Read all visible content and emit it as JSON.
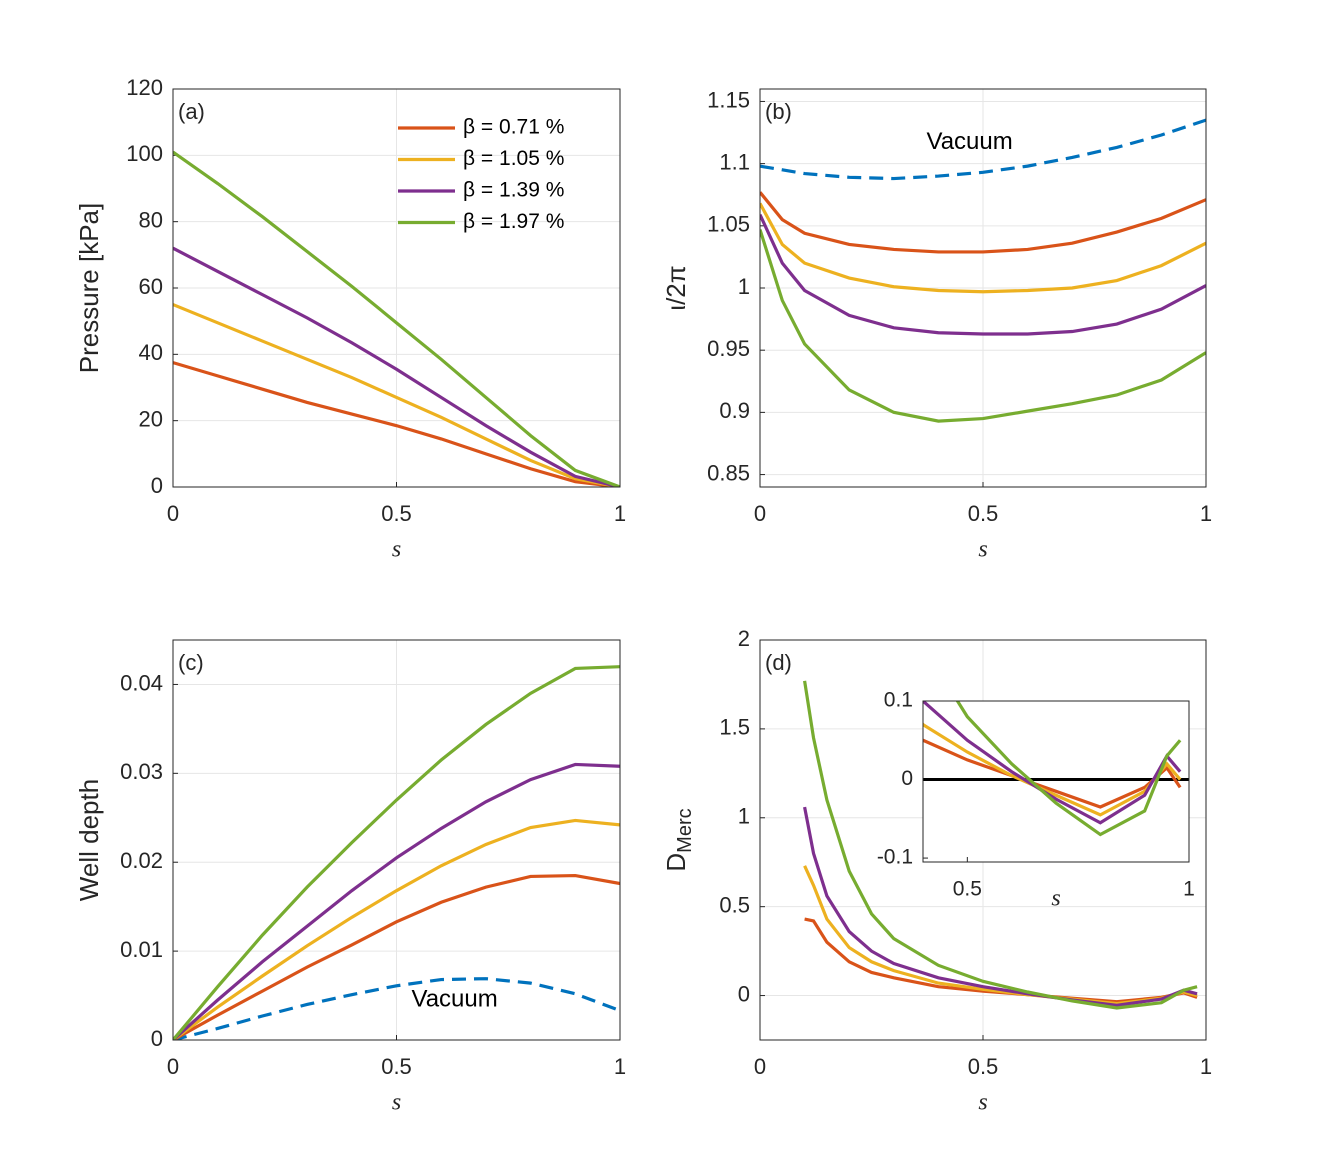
{
  "chart_data": [
    {
      "type": "line",
      "panel_label": "(a)",
      "xlabel": "s",
      "ylabel": "Pressure [kPa]",
      "xlim": [
        0,
        1
      ],
      "xticks": [
        0,
        0.5,
        1
      ],
      "ylim": [
        0,
        120
      ],
      "yticks": [
        0,
        20,
        40,
        60,
        80,
        100,
        120
      ],
      "grid": true,
      "legend": "top-right",
      "x": [
        0,
        0.1,
        0.2,
        0.3,
        0.4,
        0.5,
        0.6,
        0.7,
        0.8,
        0.9,
        1
      ],
      "series": [
        {
          "name": "β = 0.71 %",
          "color": "#d95319",
          "values": [
            37.5,
            33.5,
            29.5,
            25.5,
            22,
            18.5,
            14.5,
            10,
            5.5,
            1.6,
            0
          ]
        },
        {
          "name": "β = 1.05 %",
          "color": "#edb120",
          "values": [
            55,
            49.5,
            44,
            38.5,
            33,
            27,
            21,
            14.5,
            8,
            2.5,
            0
          ]
        },
        {
          "name": "β = 1.39 %",
          "color": "#7e2f8e",
          "values": [
            72,
            65,
            58,
            51,
            43.5,
            35.5,
            27,
            18.5,
            10.5,
            3.2,
            0
          ]
        },
        {
          "name": "β = 1.97 %",
          "color": "#77ac30",
          "values": [
            101,
            91.5,
            81.5,
            71,
            60.5,
            49.5,
            38.5,
            27,
            15.5,
            5,
            0
          ]
        }
      ]
    },
    {
      "type": "line",
      "panel_label": "(b)",
      "xlabel": "s",
      "ylabel": "ι/2π",
      "xlim": [
        0,
        1
      ],
      "xticks": [
        0,
        0.5,
        1
      ],
      "ylim": [
        0.84,
        1.16
      ],
      "yticks": [
        0.85,
        0.9,
        0.95,
        1,
        1.05,
        1.1,
        1.15
      ],
      "grid": true,
      "annotation": {
        "text": "Vacuum",
        "x": 0.47,
        "y": 1.117
      },
      "x": [
        0,
        0.05,
        0.1,
        0.2,
        0.3,
        0.4,
        0.5,
        0.6,
        0.7,
        0.8,
        0.9,
        1
      ],
      "series": [
        {
          "name": "Vacuum",
          "color": "#0072bd",
          "style": "dashed",
          "values": [
            1.098,
            1.095,
            1.092,
            1.089,
            1.088,
            1.09,
            1.093,
            1.098,
            1.105,
            1.113,
            1.123,
            1.135
          ]
        },
        {
          "color": "#d95319",
          "values": [
            1.077,
            1.055,
            1.044,
            1.035,
            1.031,
            1.029,
            1.029,
            1.031,
            1.036,
            1.045,
            1.056,
            1.071
          ]
        },
        {
          "color": "#edb120",
          "values": [
            1.068,
            1.035,
            1.02,
            1.008,
            1.001,
            0.998,
            0.997,
            0.998,
            1.0,
            1.006,
            1.018,
            1.036
          ]
        },
        {
          "color": "#7e2f8e",
          "values": [
            1.059,
            1.02,
            0.998,
            0.978,
            0.968,
            0.964,
            0.963,
            0.963,
            0.965,
            0.971,
            0.983,
            1.002
          ]
        },
        {
          "color": "#77ac30",
          "values": [
            1.047,
            0.99,
            0.955,
            0.918,
            0.9,
            0.893,
            0.895,
            0.901,
            0.907,
            0.914,
            0.926,
            0.948
          ]
        }
      ]
    },
    {
      "type": "line",
      "panel_label": "(c)",
      "xlabel": "s",
      "ylabel": "Well depth",
      "xlim": [
        0,
        1
      ],
      "xticks": [
        0,
        0.5,
        1
      ],
      "ylim": [
        0,
        0.045
      ],
      "yticks": [
        0,
        0.01,
        0.02,
        0.03,
        0.04
      ],
      "grid": true,
      "annotation": {
        "text": "Vacuum",
        "x": 0.63,
        "y": 0.0045
      },
      "x": [
        0,
        0.1,
        0.2,
        0.3,
        0.4,
        0.5,
        0.6,
        0.7,
        0.8,
        0.9,
        1
      ],
      "series": [
        {
          "name": "Vacuum",
          "color": "#0072bd",
          "style": "dashed",
          "values": [
            0,
            0.0013,
            0.0027,
            0.004,
            0.0051,
            0.0061,
            0.0068,
            0.0069,
            0.0064,
            0.0052,
            0.0033
          ]
        },
        {
          "color": "#d95319",
          "values": [
            0,
            0.0028,
            0.0055,
            0.0082,
            0.0107,
            0.0133,
            0.0155,
            0.0172,
            0.0184,
            0.0185,
            0.0176
          ]
        },
        {
          "color": "#edb120",
          "values": [
            0,
            0.0037,
            0.0072,
            0.0106,
            0.0138,
            0.0168,
            0.0196,
            0.022,
            0.0239,
            0.0247,
            0.0242
          ]
        },
        {
          "color": "#7e2f8e",
          "values": [
            0,
            0.0045,
            0.0088,
            0.0128,
            0.0168,
            0.0205,
            0.0238,
            0.0268,
            0.0293,
            0.031,
            0.0308
          ]
        },
        {
          "color": "#77ac30",
          "values": [
            0,
            0.006,
            0.0118,
            0.0172,
            0.0222,
            0.027,
            0.0315,
            0.0355,
            0.039,
            0.0418,
            0.042
          ]
        }
      ]
    },
    {
      "type": "line",
      "panel_label": "(d)",
      "xlabel": "s",
      "ylabel": "D",
      "ylabel_subscript": "Merc",
      "xlim": [
        0,
        1
      ],
      "xticks": [
        0,
        0.5,
        1
      ],
      "ylim": [
        -0.25,
        2
      ],
      "yticks": [
        0,
        0.5,
        1,
        1.5,
        2
      ],
      "grid": true,
      "x": [
        0.1,
        0.12,
        0.15,
        0.2,
        0.25,
        0.3,
        0.4,
        0.5,
        0.6,
        0.7,
        0.8,
        0.9,
        0.95,
        0.98
      ],
      "series": [
        {
          "color": "#d95319",
          "values": [
            0.43,
            0.42,
            0.3,
            0.19,
            0.13,
            0.1,
            0.05,
            0.025,
            0.005,
            -0.015,
            -0.035,
            -0.01,
            0.015,
            -0.01
          ]
        },
        {
          "color": "#edb120",
          "values": [
            0.73,
            0.62,
            0.43,
            0.27,
            0.19,
            0.14,
            0.07,
            0.035,
            0.005,
            -0.02,
            -0.045,
            -0.015,
            0.02,
            0.0
          ]
        },
        {
          "color": "#7e2f8e",
          "values": [
            1.06,
            0.8,
            0.56,
            0.36,
            0.25,
            0.18,
            0.1,
            0.05,
            0.01,
            -0.025,
            -0.055,
            -0.02,
            0.03,
            0.01
          ]
        },
        {
          "color": "#77ac30",
          "values": [
            1.77,
            1.45,
            1.1,
            0.7,
            0.46,
            0.32,
            0.17,
            0.08,
            0.02,
            -0.03,
            -0.07,
            -0.04,
            0.03,
            0.05
          ]
        }
      ],
      "inset": {
        "xlabel": "s",
        "xlim": [
          0.4,
          1
        ],
        "xticks": [
          0.5,
          1
        ],
        "ylim": [
          -0.105,
          0.1
        ],
        "yticks": [
          -0.1,
          0,
          0.1
        ],
        "reference_line": 0
      }
    }
  ]
}
